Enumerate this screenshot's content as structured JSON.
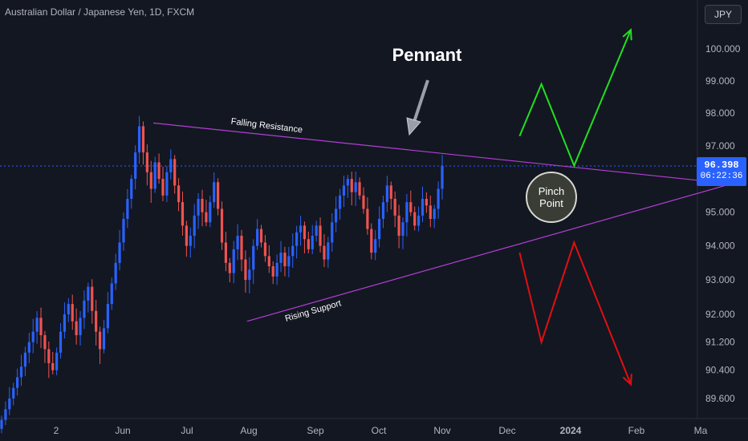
{
  "header": {
    "title": "Australian Dollar / Japanese Yen, 1D, FXCM",
    "currency_button": "JPY"
  },
  "price_tag": {
    "price": "96.398",
    "countdown": "06:22:36"
  },
  "colors": {
    "background": "#131722",
    "up_candle": "#2962ff",
    "down_candle": "#ef5350",
    "pennant_lines": "#b33fd4",
    "bull_path": "#22e01f",
    "bear_path": "#e01010",
    "pinch_circle": "#3a3d35",
    "annotation_arrow": "#9a9ea8"
  },
  "chart_data": {
    "type": "candlestick",
    "title": "Australian Dollar / Japanese Yen, 1D, FXCM",
    "x_ticks": [
      "2",
      "Jun",
      "Jul",
      "Aug",
      "Sep",
      "Oct",
      "Nov",
      "Dec",
      "2024",
      "Feb",
      "Ma"
    ],
    "y_ticks": [
      "100.000",
      "99.000",
      "98.000",
      "97.000",
      "95.000",
      "94.000",
      "93.000",
      "92.000",
      "91.200",
      "90.400",
      "89.600"
    ],
    "y_scale": "log",
    "ylim": [
      89.1,
      101.0
    ],
    "current_price": 96.398,
    "grid": false,
    "approx_daily_closes": [
      89.0,
      89.3,
      89.6,
      89.9,
      90.2,
      90.5,
      90.9,
      91.2,
      91.5,
      91.9,
      91.4,
      91.0,
      90.6,
      90.4,
      90.9,
      91.5,
      92.0,
      92.3,
      91.8,
      91.4,
      91.9,
      92.4,
      92.8,
      92.1,
      91.5,
      91.0,
      91.6,
      92.3,
      92.9,
      93.5,
      94.1,
      94.8,
      95.4,
      96.0,
      96.8,
      97.6,
      96.8,
      96.2,
      95.7,
      96.5,
      96.0,
      95.5,
      96.2,
      96.6,
      95.8,
      95.3,
      94.6,
      94.0,
      94.3,
      94.9,
      95.4,
      95.0,
      94.7,
      95.3,
      95.9,
      95.1,
      94.1,
      93.5,
      93.2,
      93.9,
      94.3,
      93.6,
      93.0,
      93.3,
      94.0,
      94.5,
      94.1,
      93.7,
      93.4,
      93.1,
      93.5,
      93.8,
      93.4,
      93.7,
      94.0,
      94.4,
      94.6,
      94.2,
      93.9,
      94.3,
      94.6,
      94.0,
      93.6,
      94.1,
      94.7,
      95.1,
      95.5,
      95.8,
      96.0,
      95.6,
      95.9,
      95.5,
      95.1,
      94.5,
      93.8,
      94.2,
      94.8,
      95.3,
      95.8,
      95.4,
      94.9,
      94.3,
      94.7,
      95.3,
      95.0,
      94.6,
      94.9,
      95.4,
      95.2,
      94.8,
      95.1,
      95.7,
      96.4
    ],
    "annotations": [
      {
        "text": "Pennant",
        "kind": "title-arrow"
      },
      {
        "text": "Falling Resistance",
        "kind": "trendline",
        "from": [
          "2023-06-15",
          97.7
        ],
        "to": [
          "2024-03-06",
          95.85
        ]
      },
      {
        "text": "Rising Support",
        "kind": "trendline",
        "from": [
          "2023-07-28",
          91.8
        ],
        "to": [
          "2024-03-06",
          95.85
        ]
      },
      {
        "text": "Pinch Point",
        "kind": "circle"
      }
    ],
    "projections": [
      {
        "name": "bullish",
        "points": [
          [
            "2023-11-30",
            97.3
          ],
          [
            "2023-12-10",
            98.9
          ],
          [
            "2023-12-25",
            96.4
          ],
          [
            "2024-01-20",
            100.6
          ]
        ]
      },
      {
        "name": "bearish",
        "points": [
          [
            "2023-11-30",
            93.8
          ],
          [
            "2023-12-10",
            91.2
          ],
          [
            "2023-12-25",
            94.1
          ],
          [
            "2024-01-20",
            90.0
          ]
        ]
      }
    ]
  }
}
